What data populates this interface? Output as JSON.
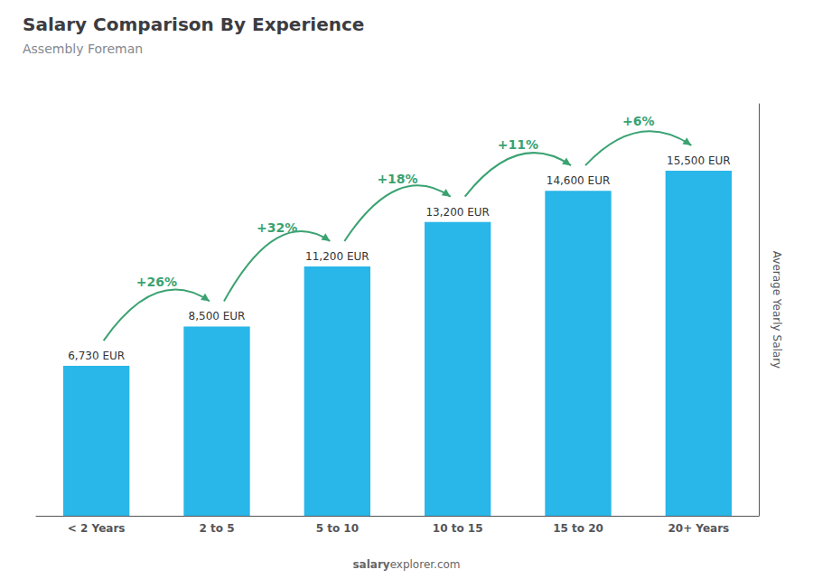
{
  "chart_data": {
    "type": "bar",
    "title": "Salary Comparison By Experience",
    "subtitle": "Assembly Foreman",
    "ylabel": "Average Yearly Salary",
    "categories": [
      "< 2 Years",
      "2 to 5",
      "5 to 10",
      "10 to 15",
      "15 to 20",
      "20+ Years"
    ],
    "values": [
      6730,
      8500,
      11200,
      13200,
      14600,
      15500
    ],
    "value_labels": [
      "6,730 EUR",
      "8,500 EUR",
      "11,200 EUR",
      "13,200 EUR",
      "14,600 EUR",
      "15,500 EUR"
    ],
    "data_labels": true,
    "color": "#29b6e8",
    "annotations": [
      "+26%",
      "+32%",
      "+18%",
      "+11%",
      "+6%"
    ],
    "ylim": [
      0,
      18500
    ],
    "grid": false,
    "tick_labels": "x",
    "watermark": [
      "salary",
      "explorer.com"
    ]
  }
}
